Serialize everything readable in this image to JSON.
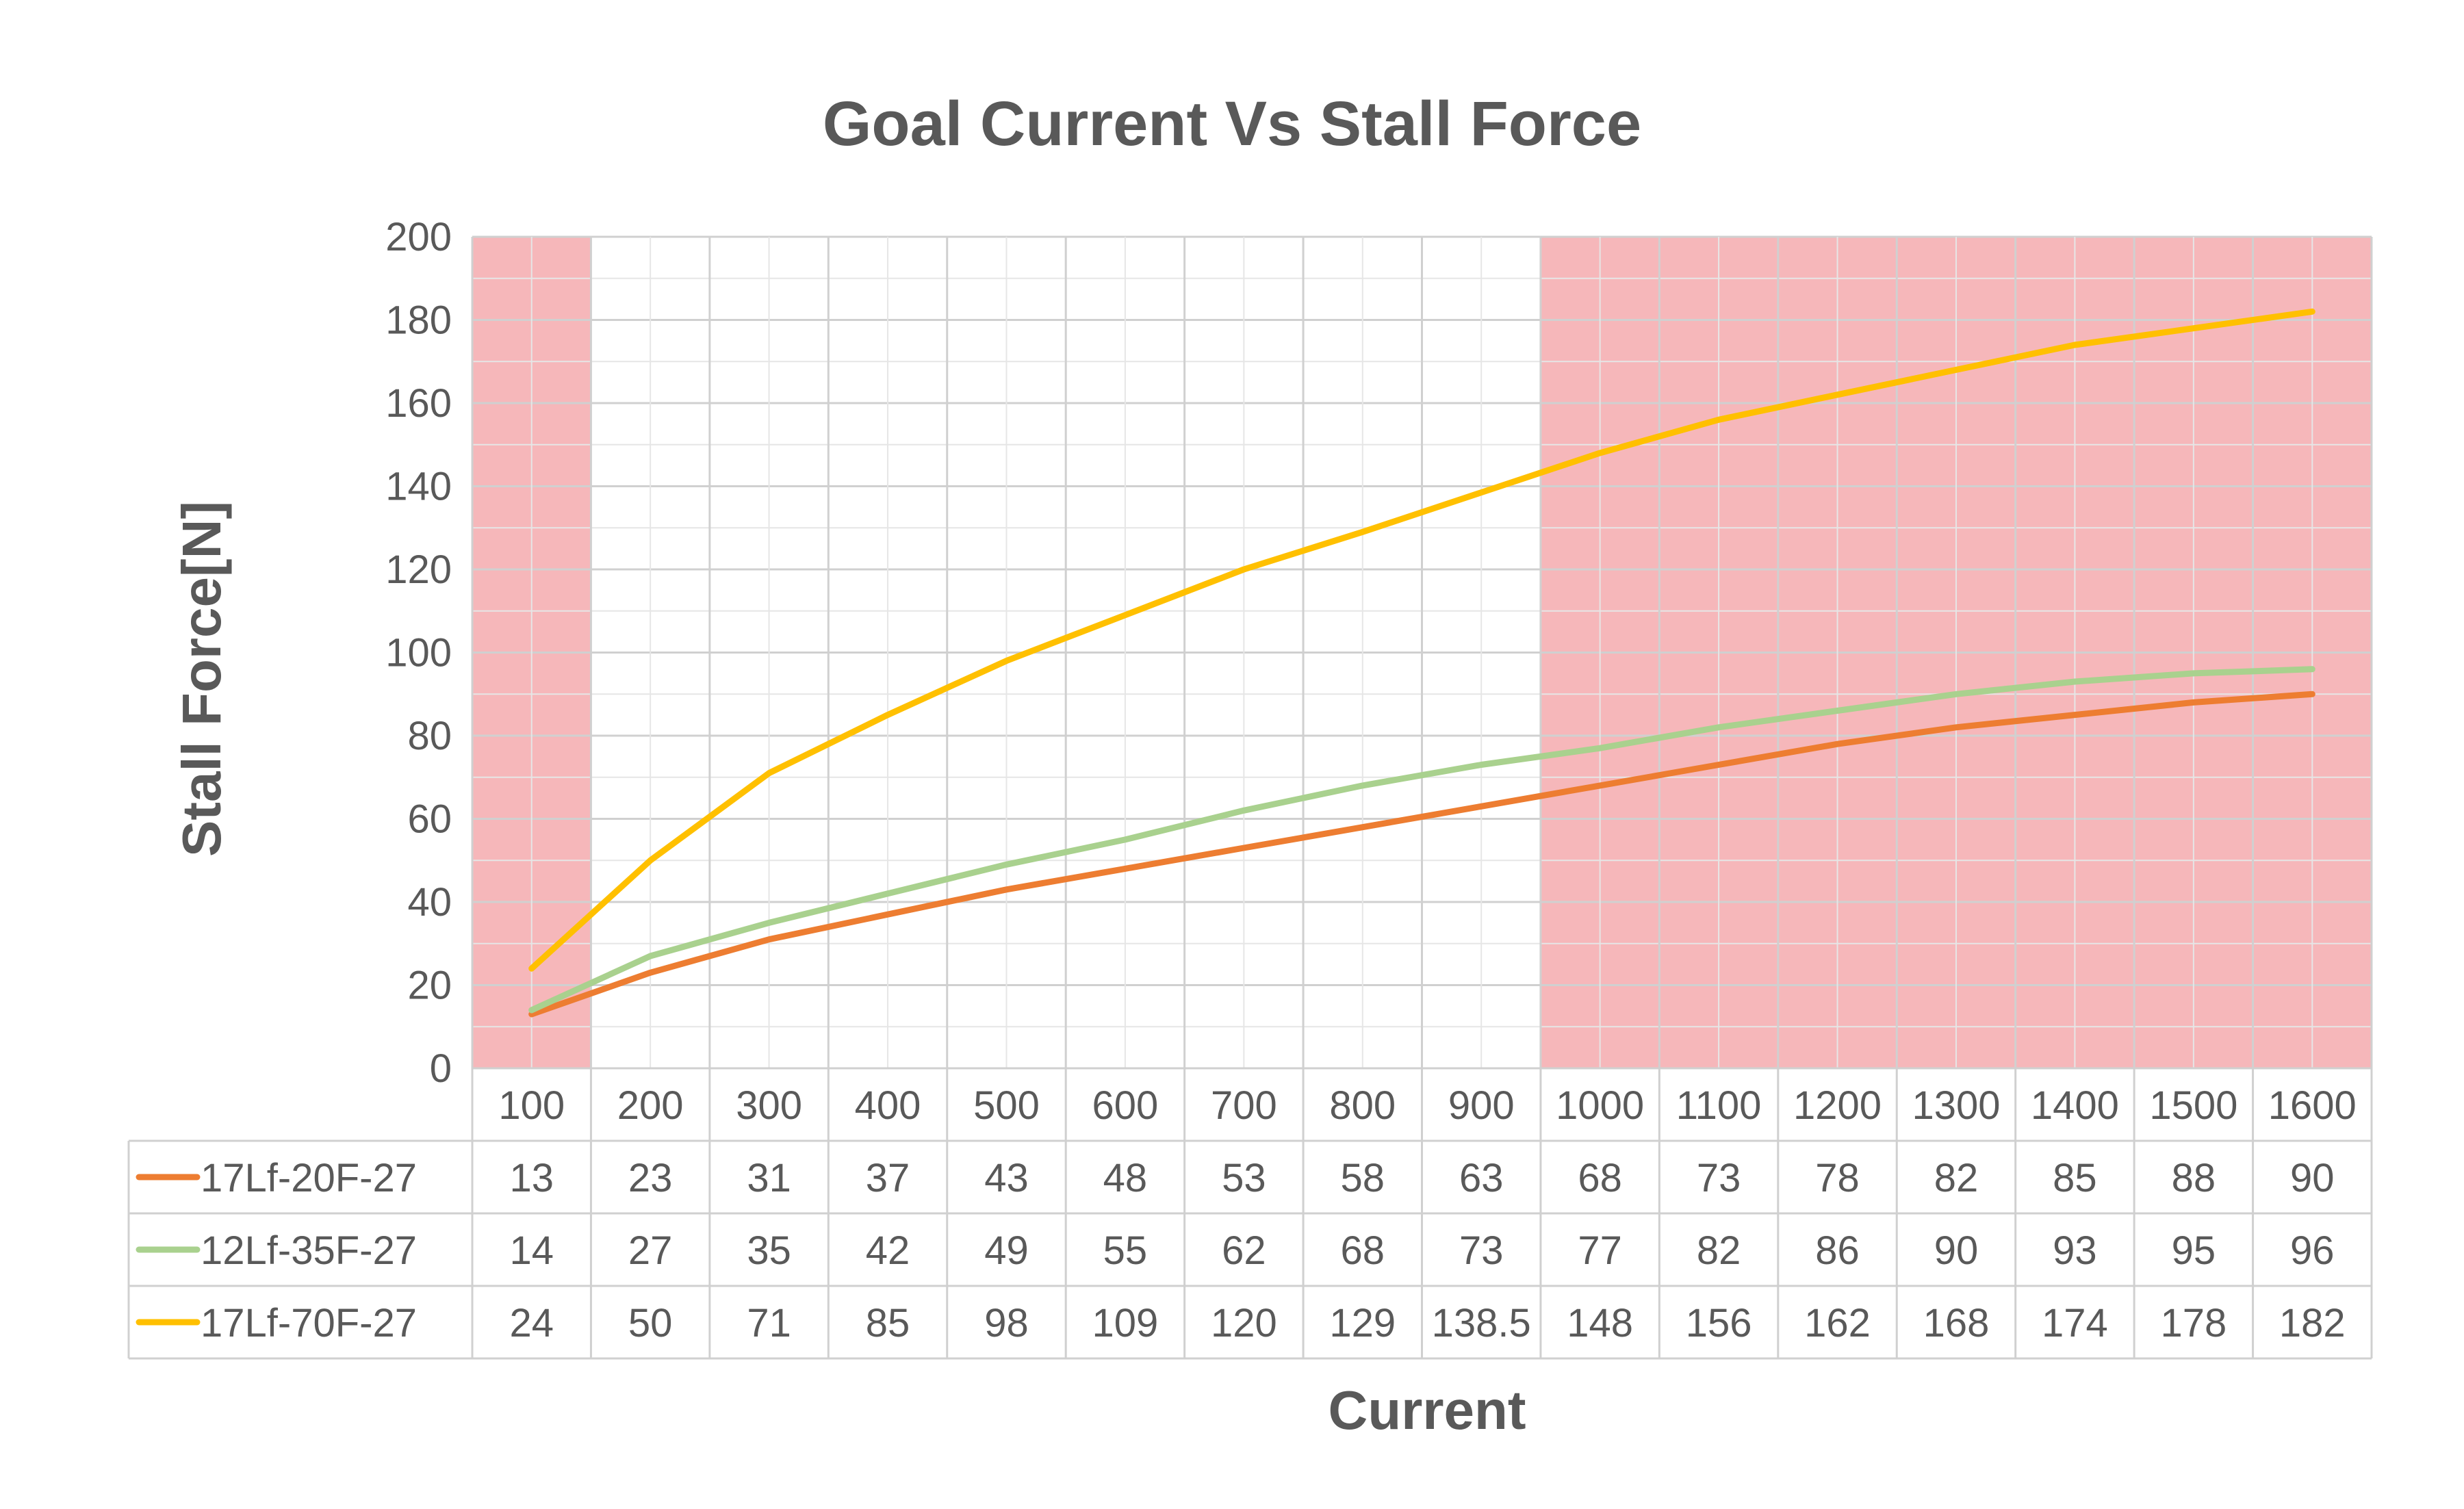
{
  "chart_data": {
    "type": "line",
    "title": "Goal Current Vs Stall Force",
    "xlabel": "Current",
    "ylabel": "Stall Force[N]",
    "ylim": [
      0,
      200
    ],
    "y_ticks": [
      0,
      20,
      40,
      60,
      80,
      100,
      120,
      140,
      160,
      180,
      200
    ],
    "grid": true,
    "legend_placement": "data-table-left",
    "categories": [
      "100",
      "200",
      "300",
      "400",
      "500",
      "600",
      "700",
      "800",
      "900",
      "1000",
      "1100",
      "1200",
      "1300",
      "1400",
      "1500",
      "1600"
    ],
    "highlight_bands": [
      {
        "from_category": "100",
        "to_category": "100",
        "color": "#f4a3a6"
      },
      {
        "from_category": "1000",
        "to_category": "1600",
        "color": "#f4a3a6"
      }
    ],
    "series": [
      {
        "name": "17Lf-20F-27",
        "color": "#ed7d31",
        "values": [
          13,
          23,
          31,
          37,
          43,
          48,
          53,
          58,
          63,
          68,
          73,
          78,
          82,
          85,
          88,
          90
        ],
        "labels": [
          "13",
          "23",
          "31",
          "37",
          "43",
          "48",
          "53",
          "58",
          "63",
          "68",
          "73",
          "78",
          "82",
          "85",
          "88",
          "90"
        ]
      },
      {
        "name": "12Lf-35F-27",
        "color": "#a9d18e",
        "values": [
          14,
          27,
          35,
          42,
          49,
          55,
          62,
          68,
          73,
          77,
          82,
          86,
          90,
          93,
          95,
          96
        ],
        "labels": [
          "14",
          "27",
          "35",
          "42",
          "49",
          "55",
          "62",
          "68",
          "73",
          "77",
          "82",
          "86",
          "90",
          "93",
          "95",
          "96"
        ]
      },
      {
        "name": "17Lf-70F-27",
        "color": "#ffc000",
        "values": [
          24,
          50,
          71,
          85,
          98,
          109,
          120,
          129,
          138.5,
          148,
          156,
          162,
          168,
          174,
          178,
          182
        ],
        "labels": [
          "24",
          "50",
          "71",
          "85",
          "98",
          "109",
          "120",
          "129",
          "138.5",
          "148",
          "156",
          "162",
          "168",
          "174",
          "178",
          "182"
        ]
      }
    ]
  }
}
